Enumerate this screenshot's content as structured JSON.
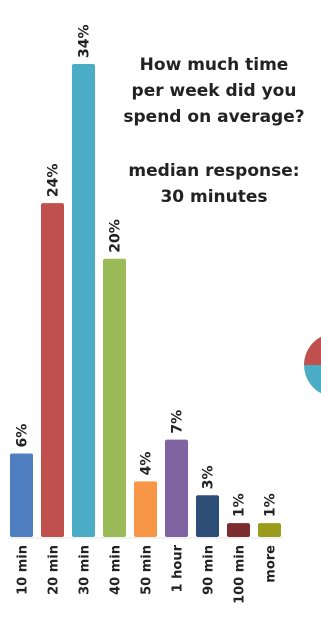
{
  "chart_data": {
    "type": "bar",
    "title": "How much time per week did you spend on average?",
    "title_lines": [
      "How much time",
      "per week did you",
      "spend on average?"
    ],
    "annotation_lines": [
      "median response:",
      "30 minutes"
    ],
    "categories": [
      "10 min",
      "20 min",
      "30 min",
      "40 min",
      "50 min",
      "1 hour",
      "90 min",
      "100 min",
      "more"
    ],
    "values": [
      6,
      24,
      34,
      20,
      4,
      7,
      3,
      1,
      1
    ],
    "value_labels": [
      "6%",
      "24%",
      "34%",
      "20%",
      "4%",
      "7%",
      "3%",
      "1%",
      "1%"
    ],
    "colors": [
      "#4f7fc1",
      "#c0504d",
      "#4bacc6",
      "#9bbb59",
      "#f79646",
      "#8064a2",
      "#2c4d75",
      "#7b2c2c",
      "#9b9b1c"
    ],
    "ylim": [
      0,
      34
    ],
    "unit": "%",
    "grid": false,
    "legend": "none"
  }
}
